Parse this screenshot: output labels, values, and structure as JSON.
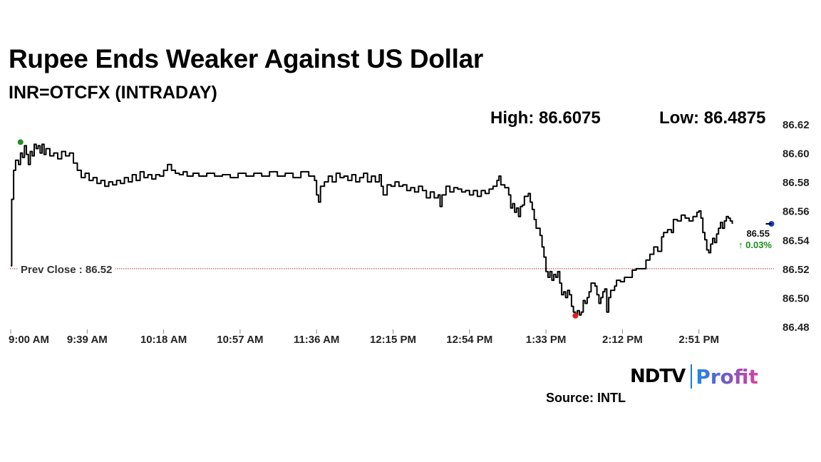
{
  "header": {
    "title": "Rupee Ends Weaker Against US Dollar",
    "subtitle": "INR=OTCFX (INTRADAY)",
    "high_label": "High: 86.6075",
    "low_label": "Low: 86.4875"
  },
  "footer": {
    "source": "Source: INTL",
    "logo_ndtv": "NDTV",
    "logo_profit": "Profit"
  },
  "chart_data": {
    "type": "line",
    "title": "Rupee Ends Weaker Against US Dollar",
    "subtitle": "INR=OTCFX (INTRADAY)",
    "xlabel": "",
    "ylabel": "",
    "x_ticks": [
      "9:00 AM",
      "9:39 AM",
      "10:18 AM",
      "10:57 AM",
      "11:36 AM",
      "12:15 PM",
      "12:54 PM",
      "1:33 PM",
      "2:12 PM",
      "2:51 PM"
    ],
    "y_ticks": [
      "86.62",
      "86.60",
      "86.58",
      "86.56",
      "86.54",
      "86.52",
      "86.50",
      "86.48"
    ],
    "ylim": [
      86.48,
      86.62
    ],
    "x_range_minutes_after_9am": [
      0,
      390
    ],
    "prev_close": 86.52,
    "prev_close_label": "Prev Close : 86.52",
    "last_value_label": "86.55",
    "change_label": "↑ 0.03%",
    "colors": {
      "line": "#000000",
      "high_marker": "#2a8a2a",
      "low_marker": "#e02020",
      "last_marker": "#1a3ccf",
      "change": "#1a8a1a",
      "prev_close": "#b03030"
    },
    "series": [
      {
        "points": [
          [
            0,
            86.522
          ],
          [
            0.5,
            86.568
          ],
          [
            1.5,
            86.588
          ],
          [
            2.5,
            86.595
          ],
          [
            4,
            86.592
          ],
          [
            5,
            86.6
          ],
          [
            6,
            86.597
          ],
          [
            7,
            86.605
          ],
          [
            8,
            86.599
          ],
          [
            9,
            86.592
          ],
          [
            10,
            86.601
          ],
          [
            11,
            86.598
          ],
          [
            12,
            86.606
          ],
          [
            13,
            86.603
          ],
          [
            14,
            86.605
          ],
          [
            15,
            86.6
          ],
          [
            16,
            86.606
          ],
          [
            17,
            86.599
          ],
          [
            18,
            86.603
          ],
          [
            20,
            86.598
          ],
          [
            22,
            86.6
          ],
          [
            24,
            86.596
          ],
          [
            26,
            86.601
          ],
          [
            28,
            86.598
          ],
          [
            30,
            86.6
          ],
          [
            32,
            86.593
          ],
          [
            34,
            86.588
          ],
          [
            36,
            86.583
          ],
          [
            38,
            86.586
          ],
          [
            40,
            86.581
          ],
          [
            42,
            86.583
          ],
          [
            44,
            86.579
          ],
          [
            46,
            86.581
          ],
          [
            48,
            86.577
          ],
          [
            50,
            86.58
          ],
          [
            52,
            86.578
          ],
          [
            54,
            86.581
          ],
          [
            56,
            86.579
          ],
          [
            58,
            86.583
          ],
          [
            60,
            86.58
          ],
          [
            62,
            86.585
          ],
          [
            64,
            86.581
          ],
          [
            66,
            86.587
          ],
          [
            68,
            86.583
          ],
          [
            70,
            86.585
          ],
          [
            72,
            86.582
          ],
          [
            74,
            86.585
          ],
          [
            76,
            86.584
          ],
          [
            78,
            86.588
          ],
          [
            80,
            86.592
          ],
          [
            82,
            86.588
          ],
          [
            84,
            86.586
          ],
          [
            86,
            86.585
          ],
          [
            88,
            86.587
          ],
          [
            90,
            86.584
          ],
          [
            93,
            86.586
          ],
          [
            96,
            86.584
          ],
          [
            100,
            86.586
          ],
          [
            104,
            86.584
          ],
          [
            108,
            86.585
          ],
          [
            112,
            86.583
          ],
          [
            116,
            86.586
          ],
          [
            120,
            86.584
          ],
          [
            124,
            86.586
          ],
          [
            128,
            86.584
          ],
          [
            132,
            86.587
          ],
          [
            136,
            86.584
          ],
          [
            140,
            86.586
          ],
          [
            144,
            86.583
          ],
          [
            148,
            86.587
          ],
          [
            152,
            86.584
          ],
          [
            155,
            86.581
          ],
          [
            156,
            86.571
          ],
          [
            157,
            86.566
          ],
          [
            158,
            86.577
          ],
          [
            160,
            86.58
          ],
          [
            162,
            86.584
          ],
          [
            164,
            86.58
          ],
          [
            166,
            86.586
          ],
          [
            168,
            86.583
          ],
          [
            170,
            86.584
          ],
          [
            172,
            86.581
          ],
          [
            174,
            86.585
          ],
          [
            176,
            86.58
          ],
          [
            178,
            86.583
          ],
          [
            180,
            86.586
          ],
          [
            182,
            86.58
          ],
          [
            184,
            86.584
          ],
          [
            186,
            86.58
          ],
          [
            188,
            86.585
          ],
          [
            189,
            86.577
          ],
          [
            190,
            86.571
          ],
          [
            192,
            86.578
          ],
          [
            194,
            86.577
          ],
          [
            196,
            86.58
          ],
          [
            198,
            86.577
          ],
          [
            200,
            86.578
          ],
          [
            202,
            86.574
          ],
          [
            204,
            86.576
          ],
          [
            206,
            86.573
          ],
          [
            208,
            86.577
          ],
          [
            210,
            86.574
          ],
          [
            212,
            86.569
          ],
          [
            214,
            86.573
          ],
          [
            216,
            86.569
          ],
          [
            218,
            86.571
          ],
          [
            219,
            86.563
          ],
          [
            220,
            86.571
          ],
          [
            222,
            86.577
          ],
          [
            224,
            86.573
          ],
          [
            226,
            86.576
          ],
          [
            228,
            86.575
          ],
          [
            230,
            86.573
          ],
          [
            232,
            86.574
          ],
          [
            234,
            86.571
          ],
          [
            236,
            86.574
          ],
          [
            238,
            86.57
          ],
          [
            240,
            86.574
          ],
          [
            242,
            86.572
          ],
          [
            244,
            86.575
          ],
          [
            246,
            86.577
          ],
          [
            248,
            86.581
          ],
          [
            249,
            86.584
          ],
          [
            250,
            86.578
          ],
          [
            252,
            86.576
          ],
          [
            254,
            86.571
          ],
          [
            255,
            86.562
          ],
          [
            256,
            86.565
          ],
          [
            257,
            86.559
          ],
          [
            258,
            86.562
          ],
          [
            259,
            86.556
          ],
          [
            260,
            86.563
          ],
          [
            261,
            86.564
          ],
          [
            262,
            86.57
          ],
          [
            264,
            86.572
          ],
          [
            265,
            86.566
          ],
          [
            266,
            86.561
          ],
          [
            267,
            86.554
          ],
          [
            268,
            86.548
          ],
          [
            270,
            86.543
          ],
          [
            271,
            86.535
          ],
          [
            272,
            86.528
          ],
          [
            273,
            86.518
          ],
          [
            274,
            86.514
          ],
          [
            275,
            86.518
          ],
          [
            276,
            86.512
          ],
          [
            277,
            86.516
          ],
          [
            278,
            86.514
          ],
          [
            279,
            86.518
          ],
          [
            280,
            86.51
          ],
          [
            281,
            86.502
          ],
          [
            282,
            86.504
          ],
          [
            283,
            86.5
          ],
          [
            284,
            86.505
          ],
          [
            285,
            86.502
          ],
          [
            286,
            86.494
          ],
          [
            287,
            86.49
          ],
          [
            288,
            86.488
          ],
          [
            289,
            86.491
          ],
          [
            290,
            86.488
          ],
          [
            291,
            86.49
          ],
          [
            292,
            86.498
          ],
          [
            293,
            86.496
          ],
          [
            294,
            86.5
          ],
          [
            295,
            86.504
          ],
          [
            296,
            86.51
          ],
          [
            298,
            86.508
          ],
          [
            299,
            86.502
          ],
          [
            300,
            86.496
          ],
          [
            301,
            86.5
          ],
          [
            302,
            86.504
          ],
          [
            303,
            86.506
          ],
          [
            304,
            86.49
          ],
          [
            305,
            86.5
          ],
          [
            306,
            86.505
          ],
          [
            308,
            86.508
          ],
          [
            309,
            86.512
          ],
          [
            311,
            86.511
          ],
          [
            313,
            86.514
          ],
          [
            315,
            86.514
          ],
          [
            317,
            86.519
          ],
          [
            319,
            86.52
          ],
          [
            322,
            86.52
          ],
          [
            324,
            86.526
          ],
          [
            326,
            86.53
          ],
          [
            328,
            86.535
          ],
          [
            330,
            86.532
          ],
          [
            332,
            86.542
          ],
          [
            333,
            86.545
          ],
          [
            335,
            86.547
          ],
          [
            337,
            86.545
          ],
          [
            338,
            86.554
          ],
          [
            340,
            86.553
          ],
          [
            342,
            86.557
          ],
          [
            344,
            86.555
          ],
          [
            346,
            86.553
          ],
          [
            348,
            86.556
          ],
          [
            350,
            86.559
          ],
          [
            351,
            86.56
          ],
          [
            352,
            86.555
          ],
          [
            353,
            86.545
          ],
          [
            354,
            86.54
          ],
          [
            355,
            86.533
          ],
          [
            356,
            86.531
          ],
          [
            357,
            86.537
          ],
          [
            358,
            86.541
          ],
          [
            359,
            86.538
          ],
          [
            360,
            86.544
          ],
          [
            361,
            86.548
          ],
          [
            362,
            86.552
          ],
          [
            363,
            86.548
          ],
          [
            364,
            86.553
          ],
          [
            365,
            86.556
          ],
          [
            366,
            86.555
          ],
          [
            367,
            86.553
          ],
          [
            368,
            86.551
          ]
        ]
      }
    ],
    "high_point": [
      5,
      86.6075
    ],
    "low_point": [
      288,
      86.4875
    ],
    "last_point": [
      388,
      86.551
    ]
  }
}
